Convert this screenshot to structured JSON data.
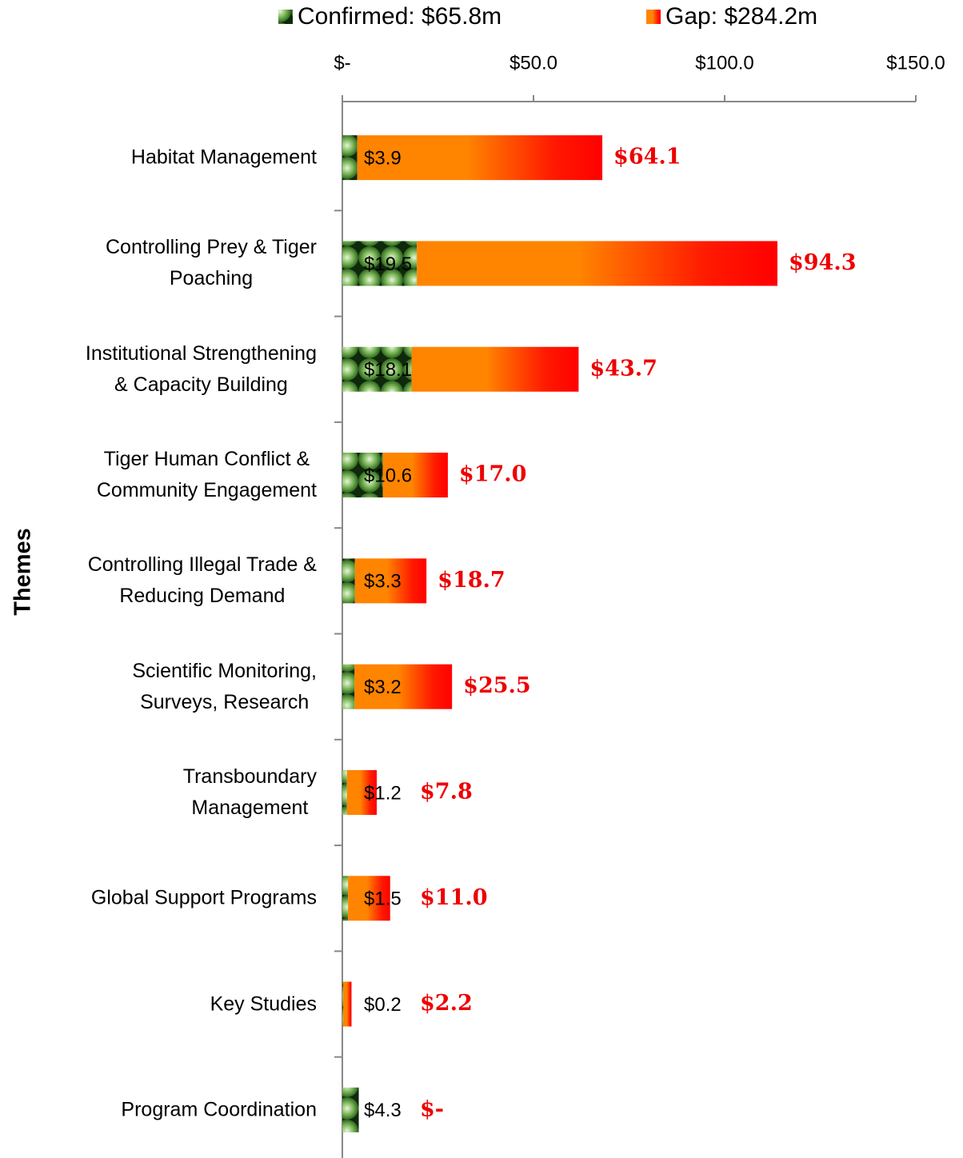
{
  "chart_data": {
    "type": "stacked_bar_horizontal",
    "axis_label": "Themes",
    "categories": [
      "Habitat Management",
      "Controlling Prey & Tiger\nPoaching",
      "Institutional  Strengthening\n& Capacity  Building",
      "Tiger Human  Conflict &\nCommunity  Engagement",
      "Controlling Illegal Trade &\nReducing Demand",
      "Scientific Monitoring,\nSurveys, Research",
      "Transboundary\nManagement",
      "Global Support Programs",
      "Key Studies",
      "Program Coordination"
    ],
    "series": [
      {
        "name": "Confirmed:  $65.8m",
        "color": "#3d7a2c",
        "values": [
          3.9,
          19.5,
          18.1,
          10.6,
          3.3,
          3.2,
          1.2,
          1.5,
          0.2,
          4.3
        ],
        "value_labels": [
          "$3.9",
          "$19.5",
          "$18.1",
          "$10.6",
          "$3.3",
          "$3.2",
          "$1.2",
          "$1.5",
          "$0.2",
          "$4.3"
        ]
      },
      {
        "name": "Gap:  $284.2m",
        "color": "#ff8400",
        "values": [
          64.1,
          94.3,
          43.7,
          17.0,
          18.7,
          25.5,
          7.8,
          11.0,
          2.2,
          0
        ],
        "value_labels": [
          "$64.1",
          "$94.3",
          "$43.7",
          "$17.0",
          "$18.7",
          "$25.5",
          "$7.8",
          "$11.0",
          "$2.2",
          "$-"
        ]
      }
    ],
    "xlim": [
      0,
      150
    ],
    "xticks": [
      {
        "value": 0,
        "label": "$-"
      },
      {
        "value": 50,
        "label": "$50.0"
      },
      {
        "value": 100,
        "label": "$100.0"
      },
      {
        "value": 150,
        "label": "$150.0"
      }
    ]
  }
}
